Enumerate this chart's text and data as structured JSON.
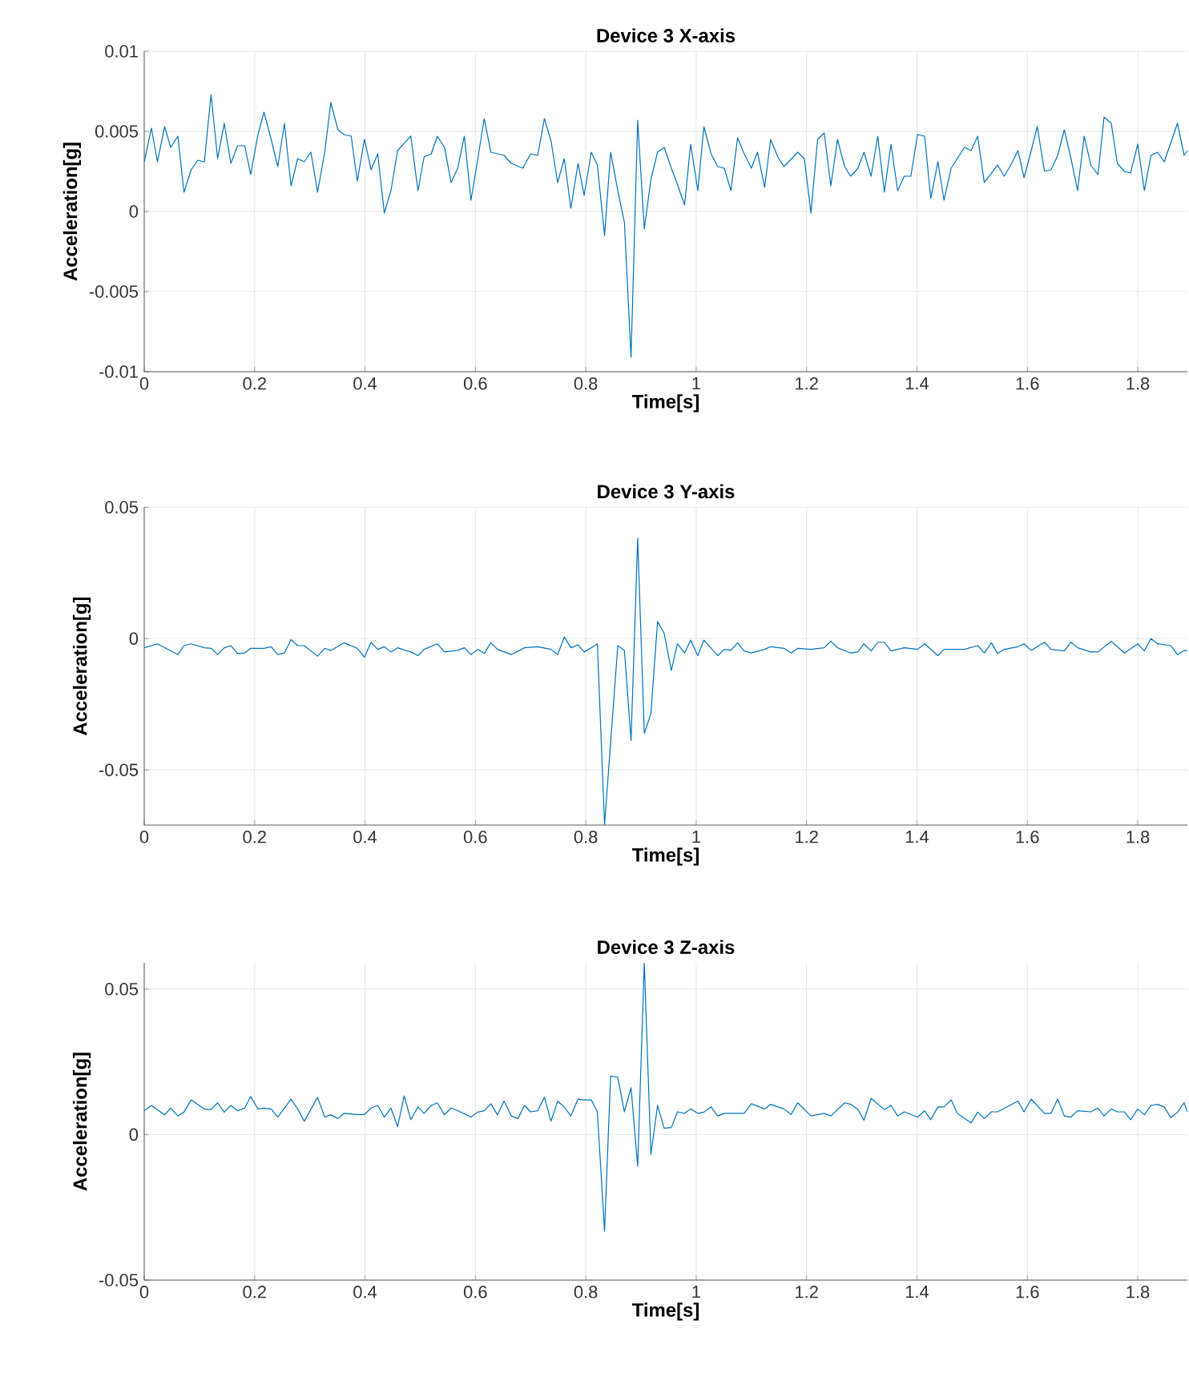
{
  "chart_data": [
    {
      "type": "line",
      "title": "Device 3 X-axis",
      "xlabel": "Time[s]",
      "ylabel": "Acceleration[g]",
      "color": "#0072bd",
      "grid": true,
      "xlim": [
        0,
        1.89
      ],
      "ylim": [
        -0.01,
        0.01
      ],
      "xticks": [
        0,
        0.2,
        0.4,
        0.6,
        0.8,
        1,
        1.2,
        1.4,
        1.6,
        1.8
      ],
      "yticks": [
        -0.01,
        -0.005,
        0,
        0.005,
        0.01
      ],
      "x": [
        0.0,
        0.013,
        0.024,
        0.037,
        0.048,
        0.061,
        0.072,
        0.085,
        0.097,
        0.109,
        0.121,
        0.133,
        0.145,
        0.157,
        0.169,
        0.182,
        0.193,
        0.206,
        0.217,
        0.23,
        0.242,
        0.254,
        0.266,
        0.278,
        0.29,
        0.302,
        0.314,
        0.327,
        0.338,
        0.351,
        0.362,
        0.375,
        0.386,
        0.399,
        0.411,
        0.423,
        0.435,
        0.447,
        0.459,
        0.483,
        0.496,
        0.507,
        0.52,
        0.531,
        0.544,
        0.556,
        0.568,
        0.58,
        0.592,
        0.604,
        0.616,
        0.628,
        0.652,
        0.665,
        0.686,
        0.7,
        0.713,
        0.725,
        0.737,
        0.749,
        0.761,
        0.773,
        0.786,
        0.797,
        0.81,
        0.821,
        0.834,
        0.845,
        0.858,
        0.87,
        0.882,
        0.894,
        0.906,
        0.918,
        0.93,
        0.942,
        0.955,
        0.966,
        0.979,
        0.99,
        1.003,
        1.014,
        1.027,
        1.039,
        1.051,
        1.063,
        1.075,
        1.087,
        1.1,
        1.111,
        1.124,
        1.135,
        1.148,
        1.159,
        1.184,
        1.196,
        1.208,
        1.22,
        1.232,
        1.244,
        1.256,
        1.269,
        1.28,
        1.293,
        1.304,
        1.317,
        1.329,
        1.341,
        1.353,
        1.365,
        1.377,
        1.389,
        1.401,
        1.414,
        1.425,
        1.438,
        1.449,
        1.462,
        1.486,
        1.498,
        1.51,
        1.522,
        1.546,
        1.558,
        1.57,
        1.583,
        1.594,
        1.607,
        1.618,
        1.631,
        1.643,
        1.655,
        1.667,
        1.679,
        1.691,
        1.703,
        1.715,
        1.728,
        1.739,
        1.752,
        1.763,
        1.776,
        1.787,
        1.8,
        1.812,
        1.824,
        1.836,
        1.848,
        1.86,
        1.872,
        1.884,
        1.89
      ],
      "values": [
        0.0031,
        0.0052,
        0.0031,
        0.0053,
        0.004,
        0.0047,
        0.0012,
        0.0026,
        0.0032,
        0.0031,
        0.0073,
        0.0033,
        0.0055,
        0.003,
        0.0041,
        0.0041,
        0.0023,
        0.0048,
        0.0062,
        0.0045,
        0.0028,
        0.0055,
        0.0016,
        0.0033,
        0.0031,
        0.0037,
        0.0012,
        0.0037,
        0.0068,
        0.0051,
        0.0048,
        0.0047,
        0.0019,
        0.0045,
        0.0026,
        0.0036,
        -0.0001,
        0.0013,
        0.0038,
        0.0047,
        0.0013,
        0.0034,
        0.0036,
        0.0047,
        0.004,
        0.0018,
        0.0027,
        0.0047,
        0.0007,
        0.0032,
        0.0058,
        0.0037,
        0.0035,
        0.003,
        0.0027,
        0.0036,
        0.0035,
        0.0058,
        0.0044,
        0.0018,
        0.0033,
        0.0002,
        0.003,
        0.001,
        0.0037,
        0.0029,
        -0.0015,
        0.0037,
        0.0013,
        -0.0007,
        -0.0091,
        0.0057,
        -0.0011,
        0.002,
        0.0037,
        0.004,
        0.0027,
        0.0017,
        0.0004,
        0.0042,
        0.0013,
        0.0053,
        0.0036,
        0.0028,
        0.0027,
        0.0013,
        0.0046,
        0.0036,
        0.0027,
        0.0037,
        0.0015,
        0.0045,
        0.0034,
        0.0028,
        0.0037,
        0.0033,
        -0.0001,
        0.0045,
        0.0049,
        0.0016,
        0.0045,
        0.0028,
        0.0022,
        0.0027,
        0.0037,
        0.0022,
        0.0047,
        0.0012,
        0.0042,
        0.0013,
        0.0022,
        0.0022,
        0.0048,
        0.0047,
        0.0008,
        0.0031,
        0.0007,
        0.0027,
        0.004,
        0.0038,
        0.0047,
        0.0018,
        0.0029,
        0.0022,
        0.0029,
        0.0038,
        0.0021,
        0.0038,
        0.0053,
        0.0025,
        0.0026,
        0.0035,
        0.0051,
        0.0033,
        0.0013,
        0.0047,
        0.0029,
        0.0023,
        0.0059,
        0.0055,
        0.003,
        0.0025,
        0.0024,
        0.0042,
        0.0013,
        0.0035,
        0.0037,
        0.0031,
        0.0043,
        0.0055,
        0.0035,
        0.0038
      ]
    },
    {
      "type": "line",
      "title": "Device 3 Y-axis",
      "xlabel": "Time[s]",
      "ylabel": "Acceleration[g]",
      "color": "#0072bd",
      "grid": true,
      "xlim": [
        0,
        1.89
      ],
      "ylim": [
        -0.071,
        0.05
      ],
      "xticks": [
        0,
        0.2,
        0.4,
        0.6,
        0.8,
        1,
        1.2,
        1.4,
        1.6,
        1.8
      ],
      "yticks": [
        -0.05,
        0,
        0.05
      ],
      "x": [
        0.0,
        0.024,
        0.048,
        0.061,
        0.072,
        0.085,
        0.109,
        0.121,
        0.133,
        0.145,
        0.157,
        0.169,
        0.182,
        0.193,
        0.217,
        0.23,
        0.242,
        0.254,
        0.266,
        0.278,
        0.29,
        0.314,
        0.327,
        0.338,
        0.362,
        0.386,
        0.399,
        0.411,
        0.423,
        0.435,
        0.447,
        0.459,
        0.483,
        0.496,
        0.507,
        0.531,
        0.544,
        0.568,
        0.58,
        0.592,
        0.604,
        0.616,
        0.628,
        0.64,
        0.665,
        0.689,
        0.713,
        0.737,
        0.749,
        0.761,
        0.773,
        0.786,
        0.797,
        0.81,
        0.821,
        0.834,
        0.858,
        0.87,
        0.882,
        0.894,
        0.906,
        0.918,
        0.93,
        0.942,
        0.955,
        0.966,
        0.979,
        0.99,
        1.003,
        1.014,
        1.039,
        1.051,
        1.063,
        1.075,
        1.087,
        1.1,
        1.124,
        1.135,
        1.159,
        1.172,
        1.184,
        1.208,
        1.232,
        1.244,
        1.256,
        1.28,
        1.293,
        1.304,
        1.317,
        1.329,
        1.341,
        1.353,
        1.377,
        1.401,
        1.414,
        1.438,
        1.449,
        1.486,
        1.51,
        1.522,
        1.535,
        1.546,
        1.558,
        1.583,
        1.594,
        1.607,
        1.631,
        1.643,
        1.667,
        1.679,
        1.691,
        1.715,
        1.728,
        1.752,
        1.776,
        1.8,
        1.812,
        1.824,
        1.836,
        1.86,
        1.872,
        1.884,
        1.89
      ],
      "values": [
        -0.0035,
        -0.002,
        -0.0047,
        -0.0061,
        -0.0027,
        -0.002,
        -0.0035,
        -0.0037,
        -0.0061,
        -0.0035,
        -0.0027,
        -0.0057,
        -0.0055,
        -0.0037,
        -0.0037,
        -0.0031,
        -0.0061,
        -0.0055,
        -0.0004,
        -0.0027,
        -0.0027,
        -0.0067,
        -0.0037,
        -0.0045,
        -0.0016,
        -0.0037,
        -0.0071,
        -0.0014,
        -0.0041,
        -0.0031,
        -0.0051,
        -0.0035,
        -0.0051,
        -0.0065,
        -0.0041,
        -0.002,
        -0.0051,
        -0.0045,
        -0.0035,
        -0.0061,
        -0.0041,
        -0.0057,
        -0.0016,
        -0.0041,
        -0.0061,
        -0.0035,
        -0.0031,
        -0.0041,
        -0.0061,
        0.0006,
        -0.0035,
        -0.0024,
        -0.0051,
        -0.0035,
        -0.002,
        -0.0708,
        -0.0027,
        -0.0045,
        -0.0388,
        0.0382,
        -0.0361,
        -0.0286,
        0.0065,
        0.002,
        -0.0122,
        -0.002,
        -0.0055,
        -0.0006,
        -0.0065,
        -0.0006,
        -0.0065,
        -0.0041,
        -0.0045,
        -0.0016,
        -0.0047,
        -0.0055,
        -0.0041,
        -0.0031,
        -0.0037,
        -0.0055,
        -0.0037,
        -0.0041,
        -0.0035,
        -0.001,
        -0.0035,
        -0.0055,
        -0.0051,
        -0.002,
        -0.0047,
        -0.0014,
        -0.0014,
        -0.0047,
        -0.0035,
        -0.0041,
        -0.002,
        -0.0065,
        -0.0041,
        -0.0041,
        -0.0027,
        -0.0055,
        -0.0016,
        -0.0057,
        -0.0041,
        -0.0031,
        -0.002,
        -0.0045,
        -0.0014,
        -0.0041,
        -0.0047,
        -0.0014,
        -0.0035,
        -0.0051,
        -0.0051,
        -0.001,
        -0.0055,
        -0.002,
        -0.0047,
        0,
        -0.002,
        -0.0027,
        -0.0061,
        -0.0045,
        -0.0047
      ]
    },
    {
      "type": "line",
      "title": "Device 3 Z-axis",
      "xlabel": "Time[s]",
      "ylabel": "Acceleration[g]",
      "color": "#0072bd",
      "grid": true,
      "xlim": [
        0,
        1.89
      ],
      "ylim": [
        -0.05,
        0.059
      ],
      "xticks": [
        0,
        0.2,
        0.4,
        0.6,
        0.8,
        1,
        1.2,
        1.4,
        1.6,
        1.8
      ],
      "yticks": [
        -0.05,
        0,
        0.05
      ],
      "x": [
        0.0,
        0.013,
        0.037,
        0.048,
        0.061,
        0.072,
        0.085,
        0.109,
        0.121,
        0.133,
        0.145,
        0.157,
        0.169,
        0.182,
        0.193,
        0.206,
        0.217,
        0.23,
        0.242,
        0.266,
        0.278,
        0.29,
        0.314,
        0.327,
        0.338,
        0.351,
        0.362,
        0.386,
        0.399,
        0.411,
        0.423,
        0.435,
        0.447,
        0.459,
        0.471,
        0.483,
        0.496,
        0.507,
        0.52,
        0.531,
        0.544,
        0.556,
        0.568,
        0.592,
        0.604,
        0.616,
        0.628,
        0.64,
        0.652,
        0.665,
        0.677,
        0.689,
        0.7,
        0.713,
        0.725,
        0.737,
        0.749,
        0.761,
        0.773,
        0.786,
        0.797,
        0.81,
        0.821,
        0.834,
        0.845,
        0.858,
        0.87,
        0.882,
        0.894,
        0.906,
        0.918,
        0.93,
        0.942,
        0.955,
        0.966,
        0.979,
        0.99,
        1.003,
        1.014,
        1.027,
        1.039,
        1.051,
        1.087,
        1.1,
        1.124,
        1.135,
        1.159,
        1.172,
        1.184,
        1.208,
        1.232,
        1.244,
        1.269,
        1.28,
        1.293,
        1.304,
        1.317,
        1.341,
        1.353,
        1.365,
        1.377,
        1.401,
        1.414,
        1.425,
        1.438,
        1.449,
        1.462,
        1.473,
        1.498,
        1.51,
        1.522,
        1.535,
        1.546,
        1.583,
        1.594,
        1.607,
        1.631,
        1.643,
        1.655,
        1.667,
        1.679,
        1.691,
        1.715,
        1.728,
        1.739,
        1.752,
        1.763,
        1.776,
        1.787,
        1.8,
        1.812,
        1.824,
        1.836,
        1.848,
        1.86,
        1.872,
        1.884,
        1.89
      ],
      "values": [
        0.0082,
        0.01,
        0.0068,
        0.0091,
        0.0064,
        0.0077,
        0.0119,
        0.0088,
        0.0086,
        0.0109,
        0.0077,
        0.01,
        0.0082,
        0.0091,
        0.0131,
        0.0088,
        0.0091,
        0.0088,
        0.006,
        0.0122,
        0.0088,
        0.0046,
        0.0128,
        0.006,
        0.0068,
        0.0055,
        0.0073,
        0.0069,
        0.0069,
        0.0091,
        0.01,
        0.006,
        0.0091,
        0.0027,
        0.0133,
        0.0051,
        0.0095,
        0.0073,
        0.01,
        0.0109,
        0.0068,
        0.0091,
        0.0082,
        0.006,
        0.0077,
        0.0082,
        0.0106,
        0.0068,
        0.0115,
        0.0064,
        0.0055,
        0.01,
        0.0078,
        0.0082,
        0.0128,
        0.0046,
        0.0115,
        0.0095,
        0.0064,
        0.0122,
        0.0119,
        0.0119,
        0.0078,
        -0.0332,
        0.0201,
        0.0197,
        0.0078,
        0.0161,
        -0.0109,
        0.059,
        -0.0068,
        0.01,
        0.0022,
        0.0024,
        0.0078,
        0.0073,
        0.0088,
        0.0073,
        0.0077,
        0.0095,
        0.0064,
        0.0073,
        0.0073,
        0.0106,
        0.0088,
        0.0104,
        0.0088,
        0.0069,
        0.0109,
        0.0064,
        0.0073,
        0.0064,
        0.0109,
        0.0104,
        0.0086,
        0.0049,
        0.0124,
        0.0086,
        0.01,
        0.0064,
        0.0078,
        0.006,
        0.0082,
        0.0051,
        0.0095,
        0.0095,
        0.0119,
        0.0073,
        0.004,
        0.0077,
        0.0055,
        0.0078,
        0.0078,
        0.0115,
        0.0078,
        0.0122,
        0.0073,
        0.0073,
        0.0122,
        0.0064,
        0.006,
        0.0082,
        0.0078,
        0.0091,
        0.0064,
        0.0088,
        0.0078,
        0.0078,
        0.0051,
        0.0088,
        0.0068,
        0.01,
        0.0104,
        0.0095,
        0.0058,
        0.0077,
        0.0109,
        0.0078
      ]
    }
  ]
}
